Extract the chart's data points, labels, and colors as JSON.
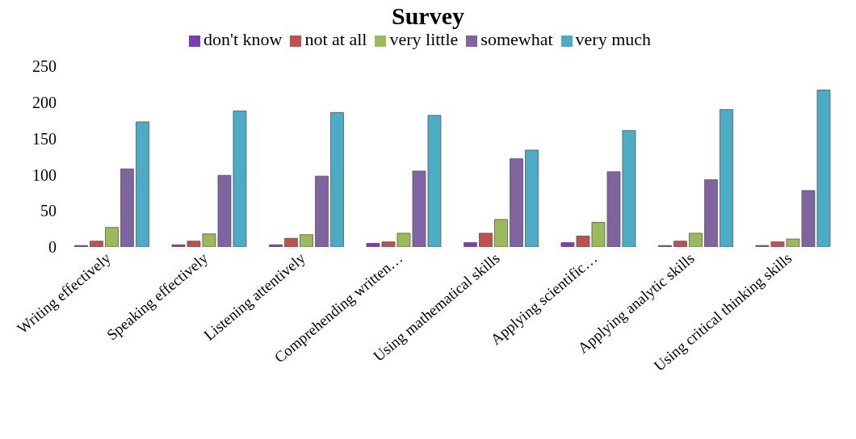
{
  "chart_data": {
    "type": "bar",
    "title": "Survey",
    "categories": [
      "Writing effectively",
      "Speaking effectively",
      "Listening attentively",
      "Comprehending written…",
      "Using mathematical skills",
      "Applying scientific…",
      "Applying analytic skills",
      "Using critical thinking skills"
    ],
    "series": [
      {
        "name": "don't know",
        "color": "#7b3fb5",
        "values": [
          2,
          3,
          3,
          5,
          6,
          6,
          2,
          2
        ]
      },
      {
        "name": "not at all",
        "color": "#c0504d",
        "values": [
          8,
          8,
          12,
          7,
          19,
          15,
          8,
          7
        ]
      },
      {
        "name": "very little",
        "color": "#9bbb59",
        "values": [
          27,
          18,
          17,
          19,
          38,
          34,
          19,
          11
        ]
      },
      {
        "name": "somewhat",
        "color": "#8064a2",
        "values": [
          108,
          99,
          98,
          105,
          122,
          104,
          93,
          78
        ]
      },
      {
        "name": "very much",
        "color": "#4bacc6",
        "values": [
          173,
          188,
          186,
          182,
          134,
          161,
          190,
          217
        ]
      }
    ],
    "ylim": [
      0,
      250
    ],
    "yticks": [
      0,
      50,
      100,
      150,
      200,
      250
    ],
    "grid": false,
    "legend": "top"
  }
}
